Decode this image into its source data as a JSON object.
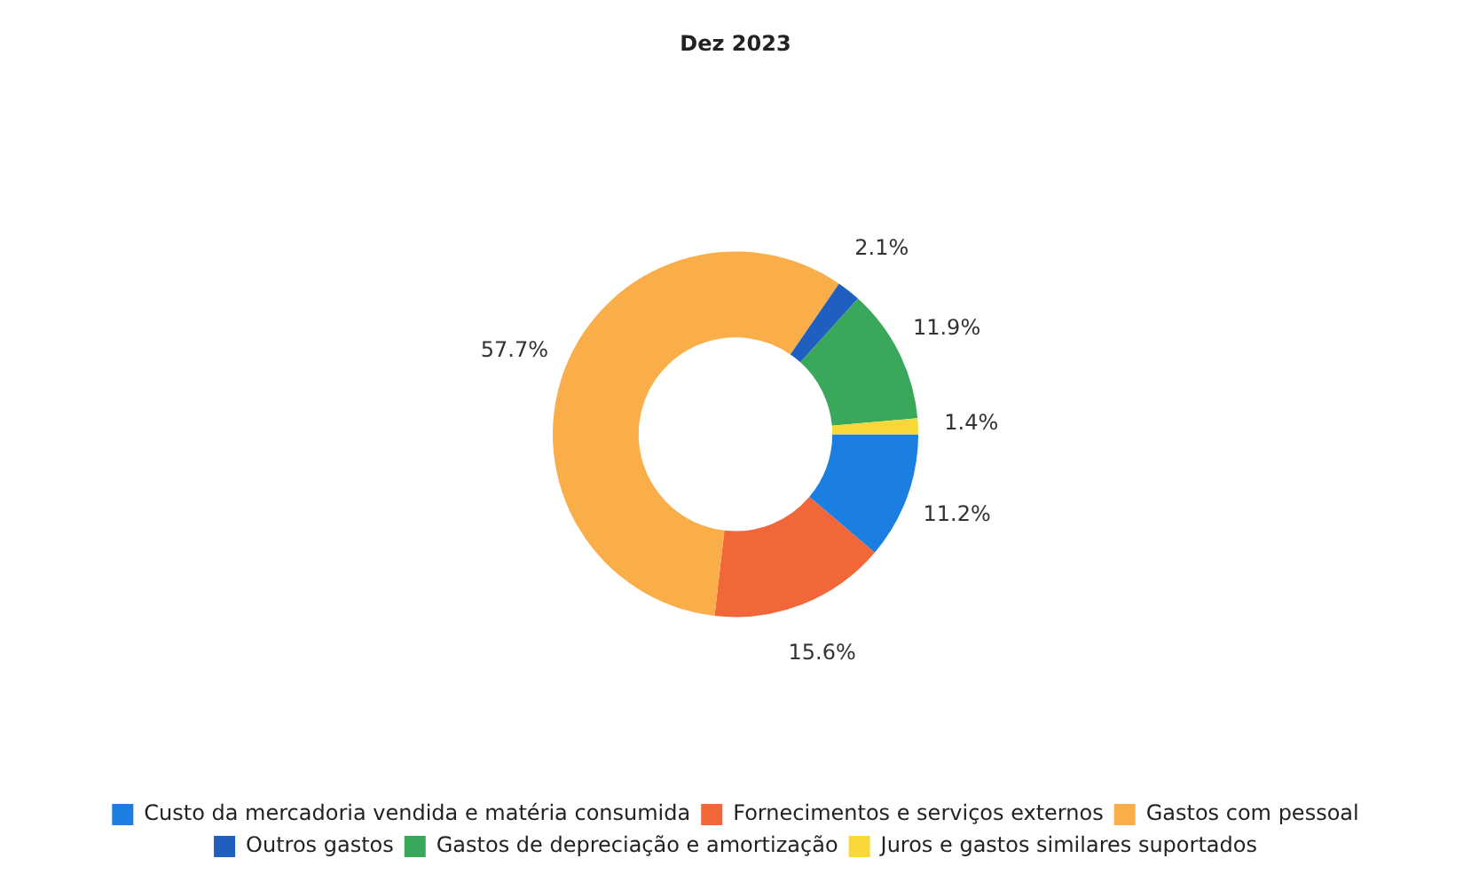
{
  "chart_data": {
    "type": "donut",
    "title": "Dez 2023",
    "categories": [
      "Custo da mercadoria vendida e matéria consumida",
      "Fornecimentos e serviços externos",
      "Gastos com pessoal",
      "Outros gastos",
      "Gastos de depreciação e amortização",
      "Juros e gastos similares suportados"
    ],
    "values": [
      11.2,
      15.6,
      57.7,
      2.1,
      11.9,
      1.4
    ],
    "colors": [
      "#1a7fe0",
      "#f2673a",
      "#f9ae4a",
      "#1f5fbf",
      "#3aa85a",
      "#f8d838"
    ],
    "value_labels": [
      "11.2%",
      "15.6%",
      "57.7%",
      "2.1%",
      "11.9%",
      "1.4%"
    ],
    "legend": "bottom"
  }
}
